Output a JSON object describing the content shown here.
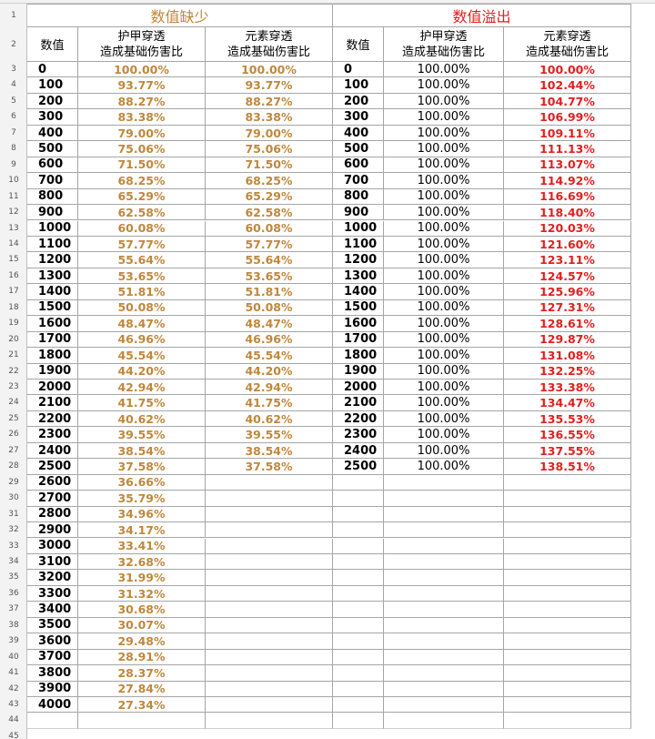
{
  "sheet": {
    "left_title": "数值缺少",
    "right_title": "数值溢出",
    "headers": {
      "value": "数值",
      "armor": [
        "护甲穿透",
        "造成基础伤害比"
      ],
      "element": [
        "元素穿透",
        "造成基础伤害比"
      ]
    },
    "colors": {
      "deficit": "#c0873c",
      "overflow": "#e02020",
      "grid": "#a6a6a6",
      "header_bg": "#f3f3f3"
    },
    "row_numbers": [
      "1",
      "2",
      "3",
      "4",
      "5",
      "6",
      "7",
      "8",
      "9",
      "10",
      "11",
      "12",
      "13",
      "14",
      "15",
      "16",
      "17",
      "18",
      "19",
      "20",
      "21",
      "22",
      "23",
      "24",
      "25",
      "26",
      "27",
      "28",
      "29",
      "30",
      "31",
      "32",
      "33",
      "34",
      "35",
      "36",
      "37",
      "38",
      "39",
      "40",
      "41",
      "42",
      "43",
      "44",
      "45"
    ],
    "deficit_rows": [
      {
        "value": "0",
        "armor": "100.00%",
        "element": "100.00%"
      },
      {
        "value": "100",
        "armor": "93.77%",
        "element": "93.77%"
      },
      {
        "value": "200",
        "armor": "88.27%",
        "element": "88.27%"
      },
      {
        "value": "300",
        "armor": "83.38%",
        "element": "83.38%"
      },
      {
        "value": "400",
        "armor": "79.00%",
        "element": "79.00%"
      },
      {
        "value": "500",
        "armor": "75.06%",
        "element": "75.06%"
      },
      {
        "value": "600",
        "armor": "71.50%",
        "element": "71.50%"
      },
      {
        "value": "700",
        "armor": "68.25%",
        "element": "68.25%"
      },
      {
        "value": "800",
        "armor": "65.29%",
        "element": "65.29%"
      },
      {
        "value": "900",
        "armor": "62.58%",
        "element": "62.58%"
      },
      {
        "value": "1000",
        "armor": "60.08%",
        "element": "60.08%"
      },
      {
        "value": "1100",
        "armor": "57.77%",
        "element": "57.77%"
      },
      {
        "value": "1200",
        "armor": "55.64%",
        "element": "55.64%"
      },
      {
        "value": "1300",
        "armor": "53.65%",
        "element": "53.65%"
      },
      {
        "value": "1400",
        "armor": "51.81%",
        "element": "51.81%"
      },
      {
        "value": "1500",
        "armor": "50.08%",
        "element": "50.08%"
      },
      {
        "value": "1600",
        "armor": "48.47%",
        "element": "48.47%"
      },
      {
        "value": "1700",
        "armor": "46.96%",
        "element": "46.96%"
      },
      {
        "value": "1800",
        "armor": "45.54%",
        "element": "45.54%"
      },
      {
        "value": "1900",
        "armor": "44.20%",
        "element": "44.20%"
      },
      {
        "value": "2000",
        "armor": "42.94%",
        "element": "42.94%"
      },
      {
        "value": "2100",
        "armor": "41.75%",
        "element": "41.75%"
      },
      {
        "value": "2200",
        "armor": "40.62%",
        "element": "40.62%"
      },
      {
        "value": "2300",
        "armor": "39.55%",
        "element": "39.55%"
      },
      {
        "value": "2400",
        "armor": "38.54%",
        "element": "38.54%"
      },
      {
        "value": "2500",
        "armor": "37.58%",
        "element": "37.58%"
      },
      {
        "value": "2600",
        "armor": "36.66%",
        "element": ""
      },
      {
        "value": "2700",
        "armor": "35.79%",
        "element": ""
      },
      {
        "value": "2800",
        "armor": "34.96%",
        "element": ""
      },
      {
        "value": "2900",
        "armor": "34.17%",
        "element": ""
      },
      {
        "value": "3000",
        "armor": "33.41%",
        "element": ""
      },
      {
        "value": "3100",
        "armor": "32.68%",
        "element": ""
      },
      {
        "value": "3200",
        "armor": "31.99%",
        "element": ""
      },
      {
        "value": "3300",
        "armor": "31.32%",
        "element": ""
      },
      {
        "value": "3400",
        "armor": "30.68%",
        "element": ""
      },
      {
        "value": "3500",
        "armor": "30.07%",
        "element": ""
      },
      {
        "value": "3600",
        "armor": "29.48%",
        "element": ""
      },
      {
        "value": "3700",
        "armor": "28.91%",
        "element": ""
      },
      {
        "value": "3800",
        "armor": "28.37%",
        "element": ""
      },
      {
        "value": "3900",
        "armor": "27.84%",
        "element": ""
      },
      {
        "value": "4000",
        "armor": "27.34%",
        "element": ""
      }
    ],
    "overflow_rows": [
      {
        "value": "0",
        "armor": "100.00%",
        "element": "100.00%"
      },
      {
        "value": "100",
        "armor": "100.00%",
        "element": "102.44%"
      },
      {
        "value": "200",
        "armor": "100.00%",
        "element": "104.77%"
      },
      {
        "value": "300",
        "armor": "100.00%",
        "element": "106.99%"
      },
      {
        "value": "400",
        "armor": "100.00%",
        "element": "109.11%"
      },
      {
        "value": "500",
        "armor": "100.00%",
        "element": "111.13%"
      },
      {
        "value": "600",
        "armor": "100.00%",
        "element": "113.07%"
      },
      {
        "value": "700",
        "armor": "100.00%",
        "element": "114.92%"
      },
      {
        "value": "800",
        "armor": "100.00%",
        "element": "116.69%"
      },
      {
        "value": "900",
        "armor": "100.00%",
        "element": "118.40%"
      },
      {
        "value": "1000",
        "armor": "100.00%",
        "element": "120.03%"
      },
      {
        "value": "1100",
        "armor": "100.00%",
        "element": "121.60%"
      },
      {
        "value": "1200",
        "armor": "100.00%",
        "element": "123.11%"
      },
      {
        "value": "1300",
        "armor": "100.00%",
        "element": "124.57%"
      },
      {
        "value": "1400",
        "armor": "100.00%",
        "element": "125.96%"
      },
      {
        "value": "1500",
        "armor": "100.00%",
        "element": "127.31%"
      },
      {
        "value": "1600",
        "armor": "100.00%",
        "element": "128.61%"
      },
      {
        "value": "1700",
        "armor": "100.00%",
        "element": "129.87%"
      },
      {
        "value": "1800",
        "armor": "100.00%",
        "element": "131.08%"
      },
      {
        "value": "1900",
        "armor": "100.00%",
        "element": "132.25%"
      },
      {
        "value": "2000",
        "armor": "100.00%",
        "element": "133.38%"
      },
      {
        "value": "2100",
        "armor": "100.00%",
        "element": "134.47%"
      },
      {
        "value": "2200",
        "armor": "100.00%",
        "element": "135.53%"
      },
      {
        "value": "2300",
        "armor": "100.00%",
        "element": "136.55%"
      },
      {
        "value": "2400",
        "armor": "100.00%",
        "element": "137.55%"
      },
      {
        "value": "2500",
        "armor": "100.00%",
        "element": "138.51%"
      }
    ]
  }
}
